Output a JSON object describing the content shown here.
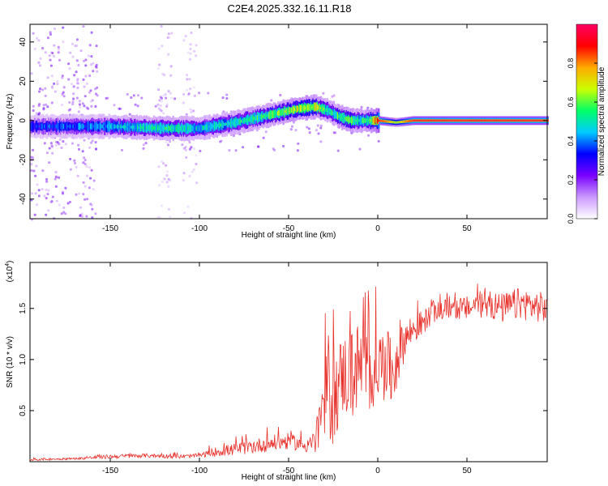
{
  "title": "C2E4.2025.332.16.11.R18",
  "colors": {
    "snr_line": "#e8302a",
    "axis": "#000000"
  },
  "chart_data": [
    {
      "type": "heatmap",
      "title": "C2E4.2025.332.16.11.R18",
      "xlabel": "Height of straight line (km)",
      "ylabel": "Frequency (Hz)",
      "xlim": [
        -195,
        95
      ],
      "ylim": [
        -50,
        49
      ],
      "xticks": [
        -150,
        -100,
        -50,
        0,
        50
      ],
      "xtick_labels": [
        "-150",
        "-100",
        "-50",
        "0",
        "50"
      ],
      "yticks": [
        -40,
        -20,
        0,
        20,
        40
      ],
      "ytick_labels": [
        "-40",
        "-20",
        "0",
        "20",
        "40"
      ],
      "colorbar": {
        "label": "Normalized spectral amplitude",
        "range": [
          0,
          1
        ],
        "ticks": [
          0.0,
          0.2,
          0.4,
          0.6,
          0.8
        ],
        "tick_labels": [
          "0.0",
          "0.2",
          "0.4",
          "0.6",
          "0.8"
        ],
        "colormap": [
          "#ffffff",
          "#cc99ff",
          "#7a00ff",
          "#0000ff",
          "#00ccff",
          "#00ff66",
          "#ccff00",
          "#ffaa00",
          "#ff0000",
          "#ff0066"
        ]
      },
      "ridge": {
        "description": "dominant frequency ridge",
        "x": [
          -195,
          -150,
          -120,
          -100,
          -80,
          -60,
          -45,
          -35,
          -28,
          -22,
          -15,
          -10,
          -5,
          0,
          10,
          20,
          40,
          60,
          80,
          95
        ],
        "freq": [
          -3,
          -3,
          -4,
          -4,
          -1,
          3,
          6,
          7,
          5,
          2,
          0,
          0,
          0,
          0,
          -1,
          0,
          0,
          0,
          0,
          0
        ],
        "amplitude": [
          0.4,
          0.5,
          0.6,
          0.55,
          0.6,
          0.65,
          0.75,
          0.8,
          0.6,
          0.65,
          0.7,
          0.6,
          0.7,
          0.95,
          0.7,
          0.95,
          0.95,
          0.95,
          0.95,
          0.95
        ]
      },
      "noise_bands": [
        {
          "x_range": [
            -195,
            -158
          ],
          "amplitude": 0.25
        },
        {
          "x_range": [
            -124,
            -116
          ],
          "amplitude": 0.15
        },
        {
          "x_range": [
            -110,
            -102
          ],
          "amplitude": 0.15
        }
      ]
    },
    {
      "type": "line",
      "xlabel": "Height of straight line (km)",
      "ylabel": "SNR (10 * v/v)",
      "scale_label": "(x10",
      "scale_exponent": "4",
      "xlim": [
        -195,
        95
      ],
      "ylim": [
        0,
        1.95
      ],
      "xticks": [
        -150,
        -100,
        -50,
        0,
        50
      ],
      "xtick_labels": [
        "-150",
        "-100",
        "-50",
        "0",
        "50"
      ],
      "yticks": [
        0.5,
        1.0,
        1.5
      ],
      "ytick_labels": [
        "0.5",
        "1.0",
        "1.5"
      ],
      "series": [
        {
          "name": "SNR",
          "x": [
            -195,
            -170,
            -150,
            -130,
            -110,
            -100,
            -90,
            -80,
            -70,
            -60,
            -50,
            -45,
            -40,
            -35,
            -32,
            -30,
            -28,
            -25,
            -20,
            -15,
            -10,
            -5,
            0,
            5,
            8,
            12,
            15,
            20,
            25,
            30,
            40,
            50,
            60,
            70,
            80,
            95
          ],
          "y": [
            0.02,
            0.03,
            0.05,
            0.06,
            0.05,
            0.06,
            0.1,
            0.12,
            0.15,
            0.18,
            0.2,
            0.18,
            0.15,
            0.2,
            0.35,
            0.5,
            0.75,
            0.6,
            0.85,
            0.85,
            0.95,
            0.85,
            0.95,
            0.95,
            0.85,
            1.1,
            1.2,
            1.3,
            1.35,
            1.45,
            1.5,
            1.5,
            1.55,
            1.5,
            1.55,
            1.5
          ],
          "jitter": [
            0.01,
            0.01,
            0.02,
            0.02,
            0.02,
            0.02,
            0.05,
            0.06,
            0.07,
            0.08,
            0.08,
            0.07,
            0.06,
            0.15,
            0.25,
            0.35,
            0.55,
            0.45,
            0.4,
            0.45,
            0.45,
            0.4,
            0.35,
            0.35,
            0.35,
            0.3,
            0.2,
            0.15,
            0.13,
            0.1,
            0.1,
            0.12,
            0.14,
            0.15,
            0.16,
            0.15
          ]
        }
      ]
    }
  ]
}
